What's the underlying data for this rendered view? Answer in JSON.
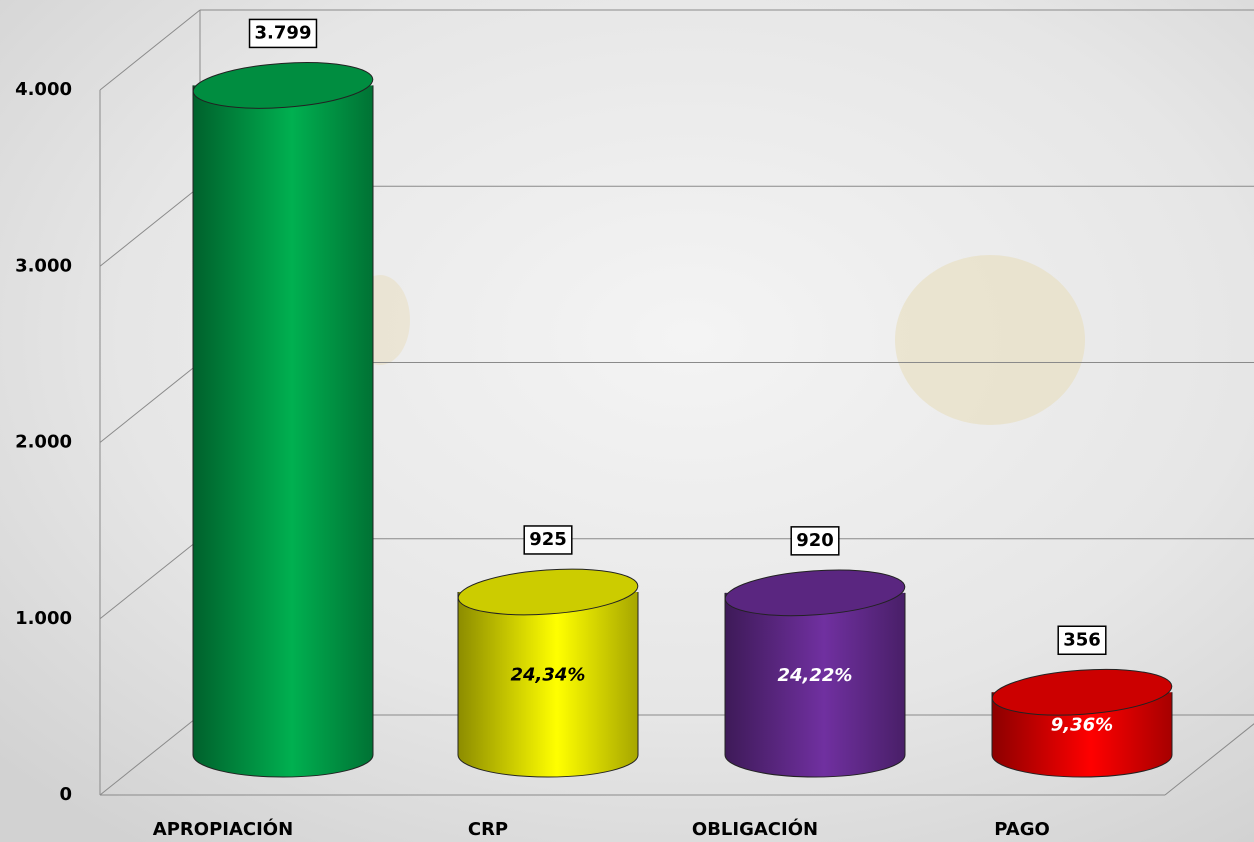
{
  "chart_data": {
    "type": "cylinder-bar",
    "categories": [
      "APROPIACIÓN",
      "CRP",
      "OBLIGACIÓN",
      "PAGO"
    ],
    "values": [
      3799,
      925,
      920,
      356
    ],
    "value_labels": [
      "3.799",
      "925",
      "920",
      "356"
    ],
    "colors": [
      "#00b050",
      "#ffff00",
      "#7030a0",
      "#ff0000"
    ],
    "percent_labels": [
      null,
      "24,34%",
      "24,22%",
      "9,36%"
    ],
    "percent_label_colors": [
      null,
      "#000000",
      "#ffffff",
      "#ffffff"
    ],
    "ylim": [
      0,
      4000
    ],
    "yticks": [
      0,
      {
        "value": 1000,
        "label": "1.000"
      },
      {
        "value": 2000,
        "label": "2.000"
      },
      {
        "value": 3000,
        "label": "3.000"
      },
      {
        "value": 4000,
        "label": "4.000"
      }
    ],
    "grid": true
  }
}
